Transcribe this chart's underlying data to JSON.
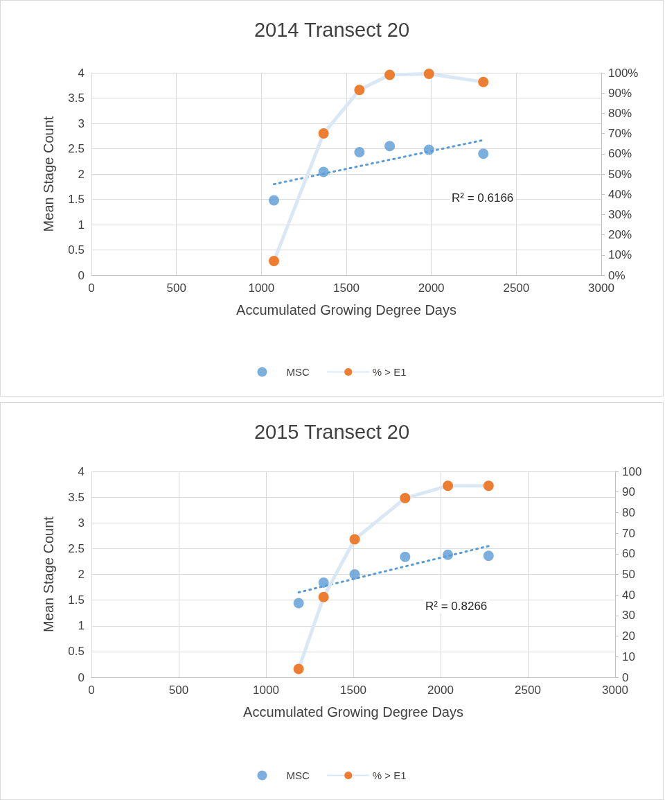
{
  "chart_data": [
    {
      "type": "scatter",
      "title": "2014 Transect 20",
      "xlabel": "Accumulated Growing Degree Days",
      "ylabel": "Mean Stage Count",
      "xlim": [
        0,
        3000
      ],
      "xticks": [
        0,
        500,
        1000,
        1500,
        2000,
        2500,
        3000
      ],
      "ylim": [
        0,
        4
      ],
      "yticks": [
        0,
        0.5,
        1,
        1.5,
        2,
        2.5,
        3,
        3.5,
        4
      ],
      "y2lim": [
        0,
        100
      ],
      "y2ticks": [
        {
          "value": 0,
          "label": "0%"
        },
        {
          "value": 10,
          "label": "10%"
        },
        {
          "value": 20,
          "label": "20%"
        },
        {
          "value": 30,
          "label": "30%"
        },
        {
          "value": 40,
          "label": "40%"
        },
        {
          "value": 50,
          "label": "50%"
        },
        {
          "value": 60,
          "label": "60%"
        },
        {
          "value": 70,
          "label": "70%"
        },
        {
          "value": 80,
          "label": "80%"
        },
        {
          "value": 90,
          "label": "90%"
        },
        {
          "value": 100,
          "label": "100%"
        }
      ],
      "grid": true,
      "legend": "bottom",
      "marker": "circle",
      "x": [
        1074,
        1366,
        1577,
        1755,
        1986,
        2306
      ],
      "series": [
        {
          "name": "MSC",
          "color": "#5b9bd5",
          "values": [
            1.48,
            2.04,
            2.43,
            2.55,
            2.48,
            2.4
          ]
        },
        {
          "name": "% > E1",
          "type": "line",
          "axis": "y2",
          "color": "#ed7d31",
          "values": [
            7,
            70,
            91.5,
            99,
            99.5,
            95.5
          ]
        },
        {
          "type": "line",
          "color": "#5b9bd5",
          "line_style": "dotted",
          "marker": "none",
          "x": [
            1074,
            2306
          ],
          "values": [
            1.8,
            2.67
          ]
        }
      ],
      "annotations": [
        "R² = 0.6166"
      ]
    },
    {
      "type": "scatter",
      "title": "2015 Transect 20",
      "xlabel": "Accumulated Growing Degree Days",
      "ylabel": "Mean Stage Count",
      "xlim": [
        0,
        3000
      ],
      "xticks": [
        0,
        500,
        1000,
        1500,
        2000,
        2500,
        3000
      ],
      "ylim": [
        0,
        4
      ],
      "yticks": [
        0,
        0.5,
        1,
        1.5,
        2,
        2.5,
        3,
        3.5,
        4
      ],
      "y2lim": [
        0,
        100
      ],
      "y2ticks": [
        0,
        10,
        20,
        30,
        40,
        50,
        60,
        70,
        80,
        90,
        100
      ],
      "grid": true,
      "legend": "bottom",
      "marker": "circle",
      "x": [
        1187,
        1330,
        1508,
        1797,
        2042,
        2275
      ],
      "series": [
        {
          "name": "MSC",
          "color": "#5b9bd5",
          "values": [
            1.44,
            1.84,
            2.0,
            2.34,
            2.38,
            2.36
          ]
        },
        {
          "name": "% > E1",
          "type": "line",
          "axis": "y2",
          "color": "#ed7d31",
          "values": [
            4,
            39,
            67,
            87,
            93,
            93
          ]
        },
        {
          "type": "line",
          "color": "#5b9bd5",
          "line_style": "dotted",
          "marker": "none",
          "x": [
            1187,
            2275
          ],
          "values": [
            1.65,
            2.55
          ]
        }
      ],
      "annotations": [
        "R² = 0.8266"
      ]
    }
  ]
}
